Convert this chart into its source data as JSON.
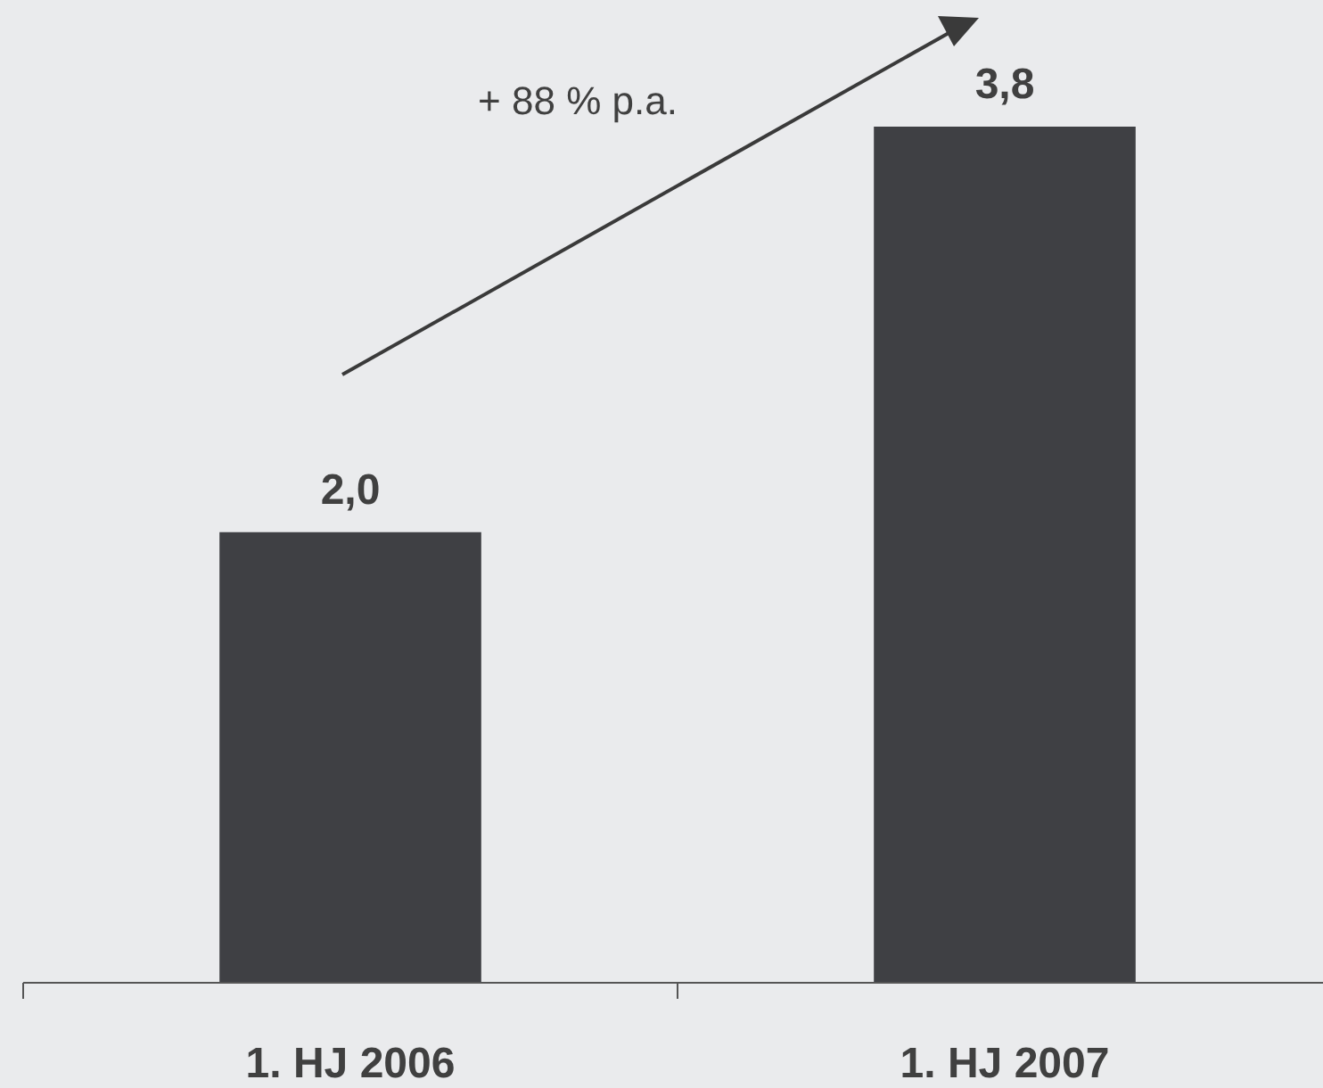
{
  "chart_data": {
    "type": "bar",
    "categories": [
      "1. HJ 2006",
      "1. HJ 2007"
    ],
    "values": [
      2.0,
      3.8
    ],
    "value_labels": [
      "2,0",
      "3,8"
    ],
    "color": "#3f4044",
    "annotations": [
      "+ 88 % p.a."
    ]
  }
}
